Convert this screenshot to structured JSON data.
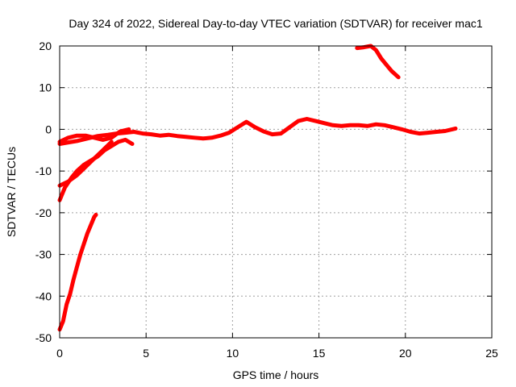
{
  "chart_data": {
    "type": "line",
    "title": "Day 324 of 2022, Sidereal Day-to-day VTEC variation (SDTVAR) for receiver mac1",
    "xlabel": "GPS time / hours",
    "ylabel": "SDTVAR / TECUs",
    "xlim": [
      0,
      25
    ],
    "ylim": [
      -50,
      20
    ],
    "xticks": [
      0,
      5,
      10,
      15,
      20,
      25
    ],
    "yticks": [
      -50,
      -40,
      -30,
      -20,
      -10,
      0,
      10,
      20
    ],
    "xtick_labels": [
      "0",
      "5",
      "10",
      "15",
      "20",
      "25"
    ],
    "ytick_labels": [
      "-50",
      "-40",
      "-30",
      "-20",
      "-10",
      "0",
      "10",
      "20"
    ],
    "grid": true,
    "series_color": "#ff0000",
    "series": [
      {
        "name": "main-band",
        "x": [
          0.0,
          0.4,
          1.0,
          1.6,
          2.2,
          2.8,
          3.3,
          3.8,
          4.3,
          4.8,
          5.3,
          5.8,
          6.3,
          6.8,
          7.3,
          7.8,
          8.3,
          8.8,
          9.3,
          9.8,
          10.3,
          10.8,
          11.3,
          11.8,
          12.3,
          12.8,
          13.3,
          13.8,
          14.3,
          14.8,
          15.3,
          15.8,
          16.3,
          16.8,
          17.3,
          17.8,
          18.3,
          18.8,
          19.3,
          19.8,
          20.3,
          20.8,
          21.3,
          21.8,
          22.3,
          22.9
        ],
        "y": [
          -3.5,
          -3.2,
          -2.8,
          -2.2,
          -1.6,
          -1.3,
          -1.0,
          -0.8,
          -0.6,
          -1.0,
          -1.2,
          -1.5,
          -1.3,
          -1.6,
          -1.8,
          -2.0,
          -2.2,
          -2.0,
          -1.5,
          -0.8,
          0.5,
          1.8,
          0.5,
          -0.5,
          -1.2,
          -1.0,
          0.5,
          2.0,
          2.5,
          2.0,
          1.5,
          1.0,
          0.8,
          1.0,
          1.0,
          0.8,
          1.2,
          1.0,
          0.5,
          0.0,
          -0.6,
          -1.0,
          -0.8,
          -0.6,
          -0.4,
          0.2
        ]
      },
      {
        "name": "upper-branch",
        "x": [
          0.0,
          0.5,
          1.0,
          1.5,
          2.0,
          2.5,
          3.0,
          3.5,
          4.0
        ],
        "y": [
          -3.0,
          -2.0,
          -1.5,
          -1.5,
          -2.0,
          -2.5,
          -2.0,
          -0.5,
          0.0
        ]
      },
      {
        "name": "recovery-curve",
        "x": [
          0.0,
          0.3,
          0.7,
          1.0,
          1.4,
          1.8,
          2.2,
          2.6,
          3.0,
          3.4,
          3.8,
          4.2
        ],
        "y": [
          -17.0,
          -14.0,
          -11.5,
          -10.0,
          -8.5,
          -7.5,
          -6.5,
          -5.0,
          -4.0,
          -3.0,
          -2.5,
          -3.5
        ]
      },
      {
        "name": "low-branch",
        "x": [
          0.0,
          0.5,
          1.0,
          1.5,
          2.0,
          2.5,
          3.0
        ],
        "y": [
          -13.5,
          -12.5,
          -11.0,
          -9.0,
          -7.0,
          -5.0,
          -3.0
        ]
      },
      {
        "name": "steep-rise",
        "x": [
          0.0,
          0.2,
          0.4,
          0.6,
          0.8,
          1.0,
          1.2,
          1.4,
          1.6,
          1.8,
          2.0,
          2.1
        ],
        "y": [
          -48.0,
          -46.0,
          -42.0,
          -39.5,
          -36.0,
          -33.0,
          -30.0,
          -27.5,
          -25.0,
          -23.0,
          -21.0,
          -20.5
        ]
      },
      {
        "name": "high-segment",
        "x": [
          17.2,
          17.6,
          18.0,
          18.3,
          18.6,
          18.9,
          19.2,
          19.6
        ],
        "y": [
          19.5,
          19.7,
          20.0,
          19.0,
          17.0,
          15.5,
          14.0,
          12.5
        ]
      }
    ]
  }
}
